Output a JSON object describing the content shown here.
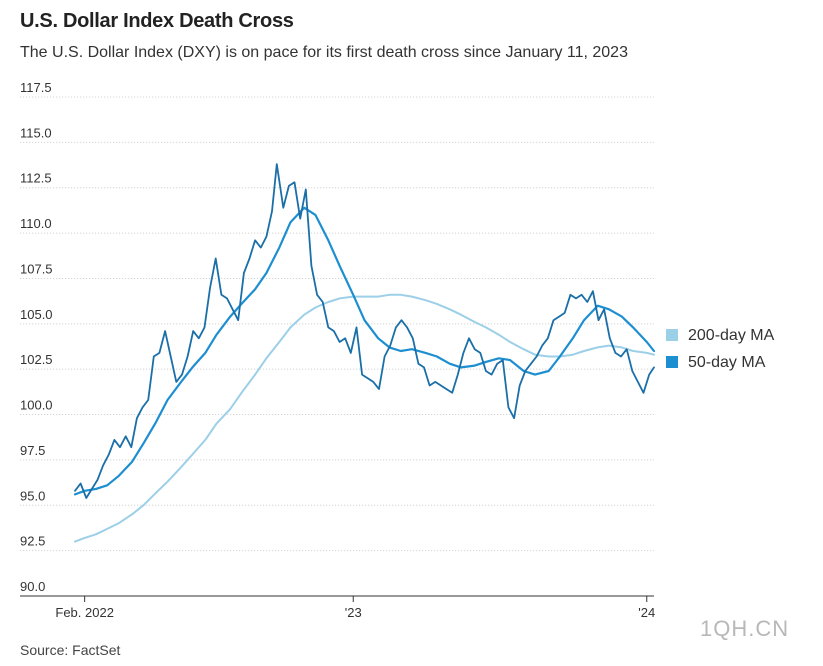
{
  "title": "U.S. Dollar Index Death Cross",
  "subtitle": "The U.S. Dollar Index (DXY) is on pace for its first death cross since January 11, 2023",
  "source": "Source: FactSet",
  "watermark": "1QH.CN",
  "chart_data": {
    "type": "line",
    "ylim": [
      90.0,
      117.5
    ],
    "xlim": [
      "2022-01-20",
      "2024-01-10"
    ],
    "yticks": [
      90.0,
      92.5,
      95.0,
      97.5,
      100.0,
      102.5,
      105.0,
      107.5,
      110.0,
      112.5,
      115.0,
      117.5
    ],
    "ytick_labels": [
      "90.0",
      "92.5",
      "95.0",
      "97.5",
      "100.0",
      "102.5",
      "105.0",
      "107.5",
      "110.0",
      "112.5",
      "115.0",
      "117.5"
    ],
    "xticks": [
      {
        "label": "Feb. 2022",
        "date": "2022-02-01"
      },
      {
        "label": "'23",
        "date": "2023-01-01"
      },
      {
        "label": "'24",
        "date": "2024-01-01"
      }
    ],
    "grid": true,
    "legend_position": "right",
    "colors": {
      "dxy": "#1a6fa8",
      "ma200": "#9ccfe8",
      "ma50": "#1d8fd1"
    },
    "legend": [
      {
        "label": "200-day MA",
        "color": "#9ccfe8"
      },
      {
        "label": "50-day MA",
        "color": "#1d8fd1"
      }
    ],
    "series": [
      {
        "key": "dxy",
        "x": [
          "2022-01-20",
          "2022-01-27",
          "2022-02-03",
          "2022-02-10",
          "2022-02-17",
          "2022-02-24",
          "2022-03-03",
          "2022-03-10",
          "2022-03-17",
          "2022-03-24",
          "2022-03-31",
          "2022-04-07",
          "2022-04-14",
          "2022-04-21",
          "2022-04-28",
          "2022-05-05",
          "2022-05-12",
          "2022-05-19",
          "2022-05-26",
          "2022-06-02",
          "2022-06-09",
          "2022-06-16",
          "2022-06-23",
          "2022-06-30",
          "2022-07-07",
          "2022-07-14",
          "2022-07-21",
          "2022-07-28",
          "2022-08-04",
          "2022-08-11",
          "2022-08-18",
          "2022-08-25",
          "2022-09-01",
          "2022-09-08",
          "2022-09-15",
          "2022-09-22",
          "2022-09-28",
          "2022-10-06",
          "2022-10-13",
          "2022-10-20",
          "2022-10-27",
          "2022-11-03",
          "2022-11-10",
          "2022-11-17",
          "2022-11-24",
          "2022-12-01",
          "2022-12-08",
          "2022-12-15",
          "2022-12-22",
          "2022-12-29",
          "2023-01-05",
          "2023-01-12",
          "2023-01-19",
          "2023-01-26",
          "2023-02-02",
          "2023-02-09",
          "2023-02-16",
          "2023-02-23",
          "2023-03-02",
          "2023-03-09",
          "2023-03-16",
          "2023-03-23",
          "2023-03-30",
          "2023-04-06",
          "2023-04-13",
          "2023-04-20",
          "2023-04-27",
          "2023-05-04",
          "2023-05-11",
          "2023-05-18",
          "2023-05-25",
          "2023-06-01",
          "2023-06-08",
          "2023-06-15",
          "2023-06-22",
          "2023-06-29",
          "2023-07-06",
          "2023-07-13",
          "2023-07-20",
          "2023-07-27",
          "2023-08-03",
          "2023-08-10",
          "2023-08-17",
          "2023-08-24",
          "2023-08-31",
          "2023-09-07",
          "2023-09-14",
          "2023-09-21",
          "2023-09-28",
          "2023-10-05",
          "2023-10-12",
          "2023-10-19",
          "2023-10-26",
          "2023-11-02",
          "2023-11-09",
          "2023-11-16",
          "2023-11-23",
          "2023-11-30",
          "2023-12-07",
          "2023-12-14",
          "2023-12-21",
          "2023-12-28",
          "2024-01-04",
          "2024-01-10"
        ],
        "values": [
          95.8,
          96.2,
          95.4,
          95.9,
          96.4,
          97.2,
          97.8,
          98.6,
          98.2,
          98.8,
          98.2,
          99.8,
          100.4,
          100.8,
          103.2,
          103.4,
          104.6,
          103.2,
          101.8,
          102.2,
          103.2,
          104.6,
          104.2,
          104.8,
          107.0,
          108.6,
          106.6,
          106.4,
          105.8,
          105.2,
          107.8,
          108.6,
          109.6,
          109.2,
          109.8,
          111.2,
          113.8,
          111.4,
          112.6,
          112.8,
          110.8,
          112.4,
          108.2,
          106.6,
          106.2,
          104.8,
          104.6,
          104.0,
          104.2,
          103.4,
          104.8,
          102.2,
          102.0,
          101.8,
          101.4,
          103.2,
          103.8,
          104.8,
          105.2,
          104.8,
          104.2,
          102.8,
          102.6,
          101.6,
          101.8,
          101.6,
          101.4,
          101.2,
          102.2,
          103.4,
          104.2,
          103.6,
          103.4,
          102.4,
          102.2,
          102.8,
          103.0,
          100.4,
          99.8,
          101.6,
          102.4,
          102.8,
          103.2,
          103.8,
          104.2,
          105.2,
          105.4,
          105.6,
          106.6,
          106.4,
          106.6,
          106.2,
          106.8,
          105.2,
          105.8,
          104.2,
          103.4,
          103.2,
          103.6,
          102.4,
          101.8,
          101.2,
          102.2,
          102.6
        ]
      },
      {
        "key": "ma50",
        "name": "50-day MA",
        "x": [
          "2022-01-20",
          "2022-02-01",
          "2022-02-15",
          "2022-03-01",
          "2022-03-15",
          "2022-04-01",
          "2022-04-15",
          "2022-05-01",
          "2022-05-15",
          "2022-06-01",
          "2022-06-15",
          "2022-07-01",
          "2022-07-15",
          "2022-08-01",
          "2022-08-15",
          "2022-09-01",
          "2022-09-15",
          "2022-10-01",
          "2022-10-15",
          "2022-11-01",
          "2022-11-15",
          "2022-12-01",
          "2022-12-15",
          "2023-01-01",
          "2023-01-15",
          "2023-02-01",
          "2023-02-15",
          "2023-03-01",
          "2023-03-15",
          "2023-04-01",
          "2023-04-15",
          "2023-05-01",
          "2023-05-15",
          "2023-06-01",
          "2023-06-15",
          "2023-07-01",
          "2023-07-15",
          "2023-08-01",
          "2023-08-15",
          "2023-09-01",
          "2023-09-15",
          "2023-10-01",
          "2023-10-15",
          "2023-11-01",
          "2023-11-15",
          "2023-12-01",
          "2023-12-15",
          "2024-01-01",
          "2024-01-10"
        ],
        "values": [
          95.6,
          95.8,
          95.9,
          96.1,
          96.6,
          97.4,
          98.4,
          99.6,
          100.8,
          101.8,
          102.6,
          103.4,
          104.4,
          105.4,
          106.1,
          106.9,
          107.8,
          109.2,
          110.6,
          111.4,
          111.0,
          109.6,
          108.2,
          106.6,
          105.2,
          104.2,
          103.7,
          103.5,
          103.6,
          103.4,
          103.2,
          102.8,
          102.6,
          102.7,
          102.9,
          103.1,
          103.0,
          102.4,
          102.2,
          102.4,
          103.2,
          104.2,
          105.2,
          106.0,
          105.8,
          105.4,
          104.8,
          104.0,
          103.5
        ]
      },
      {
        "key": "ma200",
        "name": "200-day MA",
        "x": [
          "2022-01-20",
          "2022-02-01",
          "2022-02-15",
          "2022-03-01",
          "2022-03-15",
          "2022-04-01",
          "2022-04-15",
          "2022-05-01",
          "2022-05-15",
          "2022-06-01",
          "2022-06-15",
          "2022-07-01",
          "2022-07-15",
          "2022-08-01",
          "2022-08-15",
          "2022-09-01",
          "2022-09-15",
          "2022-10-01",
          "2022-10-15",
          "2022-11-01",
          "2022-11-15",
          "2022-12-01",
          "2022-12-15",
          "2023-01-01",
          "2023-01-15",
          "2023-02-01",
          "2023-02-15",
          "2023-03-01",
          "2023-03-15",
          "2023-04-01",
          "2023-04-15",
          "2023-05-01",
          "2023-05-15",
          "2023-06-01",
          "2023-06-15",
          "2023-07-01",
          "2023-07-15",
          "2023-08-01",
          "2023-08-15",
          "2023-09-01",
          "2023-09-15",
          "2023-10-01",
          "2023-10-15",
          "2023-11-01",
          "2023-11-15",
          "2023-12-01",
          "2023-12-15",
          "2024-01-01",
          "2024-01-10"
        ],
        "values": [
          93.0,
          93.2,
          93.4,
          93.7,
          94.0,
          94.5,
          95.0,
          95.7,
          96.3,
          97.1,
          97.8,
          98.6,
          99.5,
          100.3,
          101.2,
          102.2,
          103.1,
          104.0,
          104.8,
          105.5,
          105.9,
          106.2,
          106.4,
          106.5,
          106.5,
          106.5,
          106.6,
          106.6,
          106.5,
          106.3,
          106.1,
          105.8,
          105.5,
          105.1,
          104.8,
          104.4,
          104.0,
          103.6,
          103.3,
          103.2,
          103.2,
          103.3,
          103.5,
          103.7,
          103.8,
          103.7,
          103.5,
          103.4,
          103.3
        ]
      }
    ]
  }
}
